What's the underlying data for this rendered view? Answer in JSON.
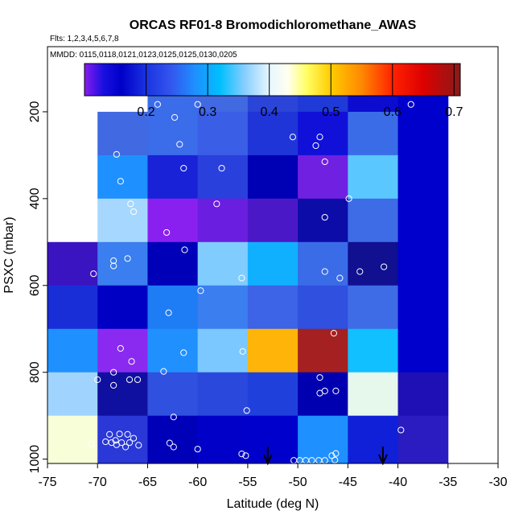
{
  "chart_data": {
    "type": "heatmap",
    "title": "ORCAS RF01-8 Bromodichloromethane_AWAS",
    "flights_note": "Flts: 1,2,3,4,5,6,7,8",
    "dates_note": "MMDD: 0115,0118,0121,0123,0125,0125,0130,0205",
    "xlabel": "Latitude (deg N)",
    "ylabel": "PSXC (mbar)",
    "xlim": [
      -75,
      -30
    ],
    "ylim": [
      1010,
      50
    ],
    "x_ticks": [
      -75,
      -70,
      -65,
      -60,
      -55,
      -50,
      -45,
      -40,
      -35,
      -30
    ],
    "x_tick_labels": [
      "-75",
      "-70",
      "-65",
      "-60",
      "-55",
      "-50",
      "-45",
      "-40",
      "-35",
      "-30"
    ],
    "y_ticks": [
      200,
      400,
      600,
      800,
      1000
    ],
    "y_tick_labels": [
      "200",
      "400",
      "600",
      "800",
      "1000"
    ],
    "colorbar": {
      "range": [
        0.1,
        0.71
      ],
      "ticks": [
        0.2,
        0.3,
        0.4,
        0.5,
        0.6,
        0.7
      ],
      "tick_labels": [
        "0.2",
        "0.3",
        "0.4",
        "0.5",
        "0.6",
        "0.7"
      ],
      "stops": [
        {
          "v": 0.1,
          "c": "#8a1cf0"
        },
        {
          "v": 0.13,
          "c": "#1a10e0"
        },
        {
          "v": 0.16,
          "c": "#0000c8"
        },
        {
          "v": 0.2,
          "c": "#1a33e0"
        },
        {
          "v": 0.24,
          "c": "#3355ee"
        },
        {
          "v": 0.28,
          "c": "#1e90ff"
        },
        {
          "v": 0.32,
          "c": "#00bfff"
        },
        {
          "v": 0.36,
          "c": "#87ceff"
        },
        {
          "v": 0.4,
          "c": "#e6f6ff"
        },
        {
          "v": 0.43,
          "c": "#fffff0"
        },
        {
          "v": 0.46,
          "c": "#ffff66"
        },
        {
          "v": 0.5,
          "c": "#ffcc00"
        },
        {
          "v": 0.55,
          "c": "#ff8800"
        },
        {
          "v": 0.6,
          "c": "#ff2200"
        },
        {
          "v": 0.65,
          "c": "#dd0000"
        },
        {
          "v": 0.71,
          "c": "#8b1a1a"
        }
      ]
    },
    "cells": [
      {
        "lat0": -65,
        "lat1": -60,
        "p0": 100,
        "p1": 200,
        "color": "#3b6cea"
      },
      {
        "lat0": -60,
        "lat1": -55,
        "p0": 100,
        "p1": 200,
        "color": "#4169e1"
      },
      {
        "lat0": -55,
        "lat1": -50,
        "p0": 100,
        "p1": 200,
        "color": "#2a45d8"
      },
      {
        "lat0": -50,
        "lat1": -45,
        "p0": 100,
        "p1": 200,
        "color": "#1f3ad6"
      },
      {
        "lat0": -45,
        "lat1": -40,
        "p0": 100,
        "p1": 200,
        "color": "#0c0cd0"
      },
      {
        "lat0": -40,
        "lat1": -35,
        "p0": 100,
        "p1": 200,
        "color": "#0000cd"
      },
      {
        "lat0": -70,
        "lat1": -65,
        "p0": 200,
        "p1": 300,
        "color": "#4169e1"
      },
      {
        "lat0": -65,
        "lat1": -60,
        "p0": 200,
        "p1": 300,
        "color": "#3b6cea"
      },
      {
        "lat0": -60,
        "lat1": -55,
        "p0": 200,
        "p1": 300,
        "color": "#3a5ee6"
      },
      {
        "lat0": -55,
        "lat1": -50,
        "p0": 200,
        "p1": 300,
        "color": "#1f35d8"
      },
      {
        "lat0": -50,
        "lat1": -45,
        "p0": 200,
        "p1": 300,
        "color": "#1010d8"
      },
      {
        "lat0": -45,
        "lat1": -40,
        "p0": 200,
        "p1": 300,
        "color": "#3a6ce8"
      },
      {
        "lat0": -40,
        "lat1": -35,
        "p0": 200,
        "p1": 300,
        "color": "#0000cd"
      },
      {
        "lat0": -70,
        "lat1": -65,
        "p0": 300,
        "p1": 400,
        "color": "#1e90ff"
      },
      {
        "lat0": -65,
        "lat1": -60,
        "p0": 300,
        "p1": 400,
        "color": "#1a22d8"
      },
      {
        "lat0": -60,
        "lat1": -55,
        "p0": 300,
        "p1": 400,
        "color": "#2a40dc"
      },
      {
        "lat0": -55,
        "lat1": -50,
        "p0": 300,
        "p1": 400,
        "color": "#0000b4"
      },
      {
        "lat0": -50,
        "lat1": -45,
        "p0": 300,
        "p1": 400,
        "color": "#7020e0"
      },
      {
        "lat0": -45,
        "lat1": -40,
        "p0": 300,
        "p1": 400,
        "color": "#5ac8ff"
      },
      {
        "lat0": -40,
        "lat1": -35,
        "p0": 300,
        "p1": 400,
        "color": "#0000cd"
      },
      {
        "lat0": -70,
        "lat1": -65,
        "p0": 400,
        "p1": 500,
        "color": "#a6d8ff"
      },
      {
        "lat0": -65,
        "lat1": -60,
        "p0": 400,
        "p1": 500,
        "color": "#8a20f0"
      },
      {
        "lat0": -60,
        "lat1": -55,
        "p0": 400,
        "p1": 500,
        "color": "#6a1ee0"
      },
      {
        "lat0": -55,
        "lat1": -50,
        "p0": 400,
        "p1": 500,
        "color": "#4b18c8"
      },
      {
        "lat0": -50,
        "lat1": -45,
        "p0": 400,
        "p1": 500,
        "color": "#0c0ca8"
      },
      {
        "lat0": -45,
        "lat1": -40,
        "p0": 400,
        "p1": 500,
        "color": "#3e6be6"
      },
      {
        "lat0": -40,
        "lat1": -35,
        "p0": 400,
        "p1": 500,
        "color": "#0000cd"
      },
      {
        "lat0": -75,
        "lat1": -70,
        "p0": 500,
        "p1": 600,
        "color": "#3a14c0"
      },
      {
        "lat0": -70,
        "lat1": -65,
        "p0": 500,
        "p1": 600,
        "color": "#3a7ef0"
      },
      {
        "lat0": -65,
        "lat1": -60,
        "p0": 500,
        "p1": 600,
        "color": "#0000b8"
      },
      {
        "lat0": -60,
        "lat1": -55,
        "p0": 500,
        "p1": 600,
        "color": "#80ccff"
      },
      {
        "lat0": -55,
        "lat1": -50,
        "p0": 500,
        "p1": 600,
        "color": "#10b0ff"
      },
      {
        "lat0": -50,
        "lat1": -45,
        "p0": 500,
        "p1": 600,
        "color": "#3a6ce8"
      },
      {
        "lat0": -45,
        "lat1": -40,
        "p0": 500,
        "p1": 600,
        "color": "#101090"
      },
      {
        "lat0": -40,
        "lat1": -35,
        "p0": 500,
        "p1": 600,
        "color": "#0000cd"
      },
      {
        "lat0": -75,
        "lat1": -70,
        "p0": 600,
        "p1": 700,
        "color": "#1a2ed8"
      },
      {
        "lat0": -70,
        "lat1": -65,
        "p0": 600,
        "p1": 700,
        "color": "#0000c4"
      },
      {
        "lat0": -65,
        "lat1": -60,
        "p0": 600,
        "p1": 700,
        "color": "#1e7cf5"
      },
      {
        "lat0": -60,
        "lat1": -55,
        "p0": 600,
        "p1": 700,
        "color": "#3a7ef0"
      },
      {
        "lat0": -55,
        "lat1": -50,
        "p0": 600,
        "p1": 700,
        "color": "#3d63e6"
      },
      {
        "lat0": -50,
        "lat1": -45,
        "p0": 600,
        "p1": 700,
        "color": "#3050e0"
      },
      {
        "lat0": -45,
        "lat1": -40,
        "p0": 600,
        "p1": 700,
        "color": "#3e6be6"
      },
      {
        "lat0": -40,
        "lat1": -35,
        "p0": 600,
        "p1": 700,
        "color": "#0000cd"
      },
      {
        "lat0": -75,
        "lat1": -70,
        "p0": 700,
        "p1": 800,
        "color": "#1e90ff"
      },
      {
        "lat0": -70,
        "lat1": -65,
        "p0": 700,
        "p1": 800,
        "color": "#8a2af0"
      },
      {
        "lat0": -65,
        "lat1": -60,
        "p0": 700,
        "p1": 800,
        "color": "#2090ff"
      },
      {
        "lat0": -60,
        "lat1": -55,
        "p0": 700,
        "p1": 800,
        "color": "#7ac8ff"
      },
      {
        "lat0": -55,
        "lat1": -50,
        "p0": 700,
        "p1": 800,
        "color": "#ffb40a"
      },
      {
        "lat0": -50,
        "lat1": -45,
        "p0": 700,
        "p1": 800,
        "color": "#a52020"
      },
      {
        "lat0": -45,
        "lat1": -40,
        "p0": 700,
        "p1": 800,
        "color": "#10c0ff"
      },
      {
        "lat0": -40,
        "lat1": -35,
        "p0": 700,
        "p1": 800,
        "color": "#0000cd"
      },
      {
        "lat0": -75,
        "lat1": -70,
        "p0": 800,
        "p1": 900,
        "color": "#a0d4ff"
      },
      {
        "lat0": -70,
        "lat1": -65,
        "p0": 800,
        "p1": 900,
        "color": "#1010a0"
      },
      {
        "lat0": -65,
        "lat1": -60,
        "p0": 800,
        "p1": 900,
        "color": "#3050e0"
      },
      {
        "lat0": -60,
        "lat1": -55,
        "p0": 800,
        "p1": 900,
        "color": "#2a48dc"
      },
      {
        "lat0": -55,
        "lat1": -50,
        "p0": 800,
        "p1": 900,
        "color": "#2040dc"
      },
      {
        "lat0": -50,
        "lat1": -45,
        "p0": 800,
        "p1": 900,
        "color": "#0000b0"
      },
      {
        "lat0": -45,
        "lat1": -40,
        "p0": 800,
        "p1": 900,
        "color": "#e6f8ec"
      },
      {
        "lat0": -40,
        "lat1": -35,
        "p0": 800,
        "p1": 900,
        "color": "#1e10b4"
      },
      {
        "lat0": -75,
        "lat1": -70,
        "p0": 900,
        "p1": 1010,
        "color": "#f8ffd8"
      },
      {
        "lat0": -70,
        "lat1": -65,
        "p0": 900,
        "p1": 1010,
        "color": "#2a38d8"
      },
      {
        "lat0": -65,
        "lat1": -60,
        "p0": 900,
        "p1": 1010,
        "color": "#0000b8"
      },
      {
        "lat0": -60,
        "lat1": -55,
        "p0": 900,
        "p1": 1010,
        "color": "#0000c8"
      },
      {
        "lat0": -55,
        "lat1": -50,
        "p0": 900,
        "p1": 1010,
        "color": "#0000cc"
      },
      {
        "lat0": -50,
        "lat1": -45,
        "p0": 900,
        "p1": 1010,
        "color": "#1e90ff"
      },
      {
        "lat0": -45,
        "lat1": -40,
        "p0": 900,
        "p1": 1010,
        "color": "#1020d8"
      },
      {
        "lat0": -40,
        "lat1": -35,
        "p0": 900,
        "p1": 1010,
        "color": "#2a1cc0"
      }
    ],
    "samples": [
      [
        -64.0,
        183
      ],
      [
        -62.3,
        213
      ],
      [
        -60.0,
        183
      ],
      [
        -38.7,
        183
      ],
      [
        -61.8,
        275
      ],
      [
        -61.4,
        330
      ],
      [
        -57.6,
        330
      ],
      [
        -50.5,
        258
      ],
      [
        -48.2,
        278
      ],
      [
        -47.8,
        258
      ],
      [
        -47.3,
        315
      ],
      [
        -68.1,
        298
      ],
      [
        -67.7,
        360
      ],
      [
        -58.1,
        412
      ],
      [
        -44.9,
        400
      ],
      [
        -66.7,
        412
      ],
      [
        -66.4,
        430
      ],
      [
        -47.3,
        443
      ],
      [
        -63.1,
        478
      ],
      [
        -61.3,
        518
      ],
      [
        -67.0,
        538
      ],
      [
        -68.4,
        543
      ],
      [
        -68.4,
        555
      ],
      [
        -70.4,
        573
      ],
      [
        -55.6,
        583
      ],
      [
        -47.3,
        568
      ],
      [
        -45.8,
        583
      ],
      [
        -43.8,
        568
      ],
      [
        -41.4,
        557
      ],
      [
        -59.7,
        612
      ],
      [
        -62.9,
        663
      ],
      [
        -46.4,
        710
      ],
      [
        -61.4,
        755
      ],
      [
        -55.5,
        752
      ],
      [
        -67.7,
        745
      ],
      [
        -66.6,
        775
      ],
      [
        -63.4,
        798
      ],
      [
        -68.4,
        800
      ],
      [
        -70.0,
        817
      ],
      [
        -66.8,
        817
      ],
      [
        -66.0,
        817
      ],
      [
        -68.4,
        830
      ],
      [
        -47.8,
        812
      ],
      [
        -47.3,
        843
      ],
      [
        -47.8,
        848
      ],
      [
        -46.2,
        843
      ],
      [
        -55.1,
        888
      ],
      [
        -62.4,
        903
      ],
      [
        -68.8,
        943
      ],
      [
        -68.2,
        957
      ],
      [
        -68.6,
        962
      ],
      [
        -68.1,
        967
      ],
      [
        -67.6,
        962
      ],
      [
        -67.2,
        972
      ],
      [
        -66.8,
        962
      ],
      [
        -66.4,
        952
      ],
      [
        -65.9,
        968
      ],
      [
        -67.8,
        942
      ],
      [
        -67.0,
        943
      ],
      [
        -62.8,
        963
      ],
      [
        -62.4,
        972
      ],
      [
        -60.0,
        977
      ],
      [
        -55.6,
        988
      ],
      [
        -55.2,
        992
      ],
      [
        -50.4,
        1003
      ],
      [
        -49.8,
        1003
      ],
      [
        -49.2,
        1003
      ],
      [
        -48.6,
        1003
      ],
      [
        -47.9,
        1003
      ],
      [
        -47.3,
        1003
      ],
      [
        -46.6,
        992
      ],
      [
        -46.2,
        987
      ],
      [
        -46.3,
        1002
      ],
      [
        -39.7,
        933
      ],
      [
        -70.6,
        965
      ],
      [
        -69.2,
        960
      ]
    ],
    "markers_lat": [
      -53,
      -41.5
    ]
  }
}
